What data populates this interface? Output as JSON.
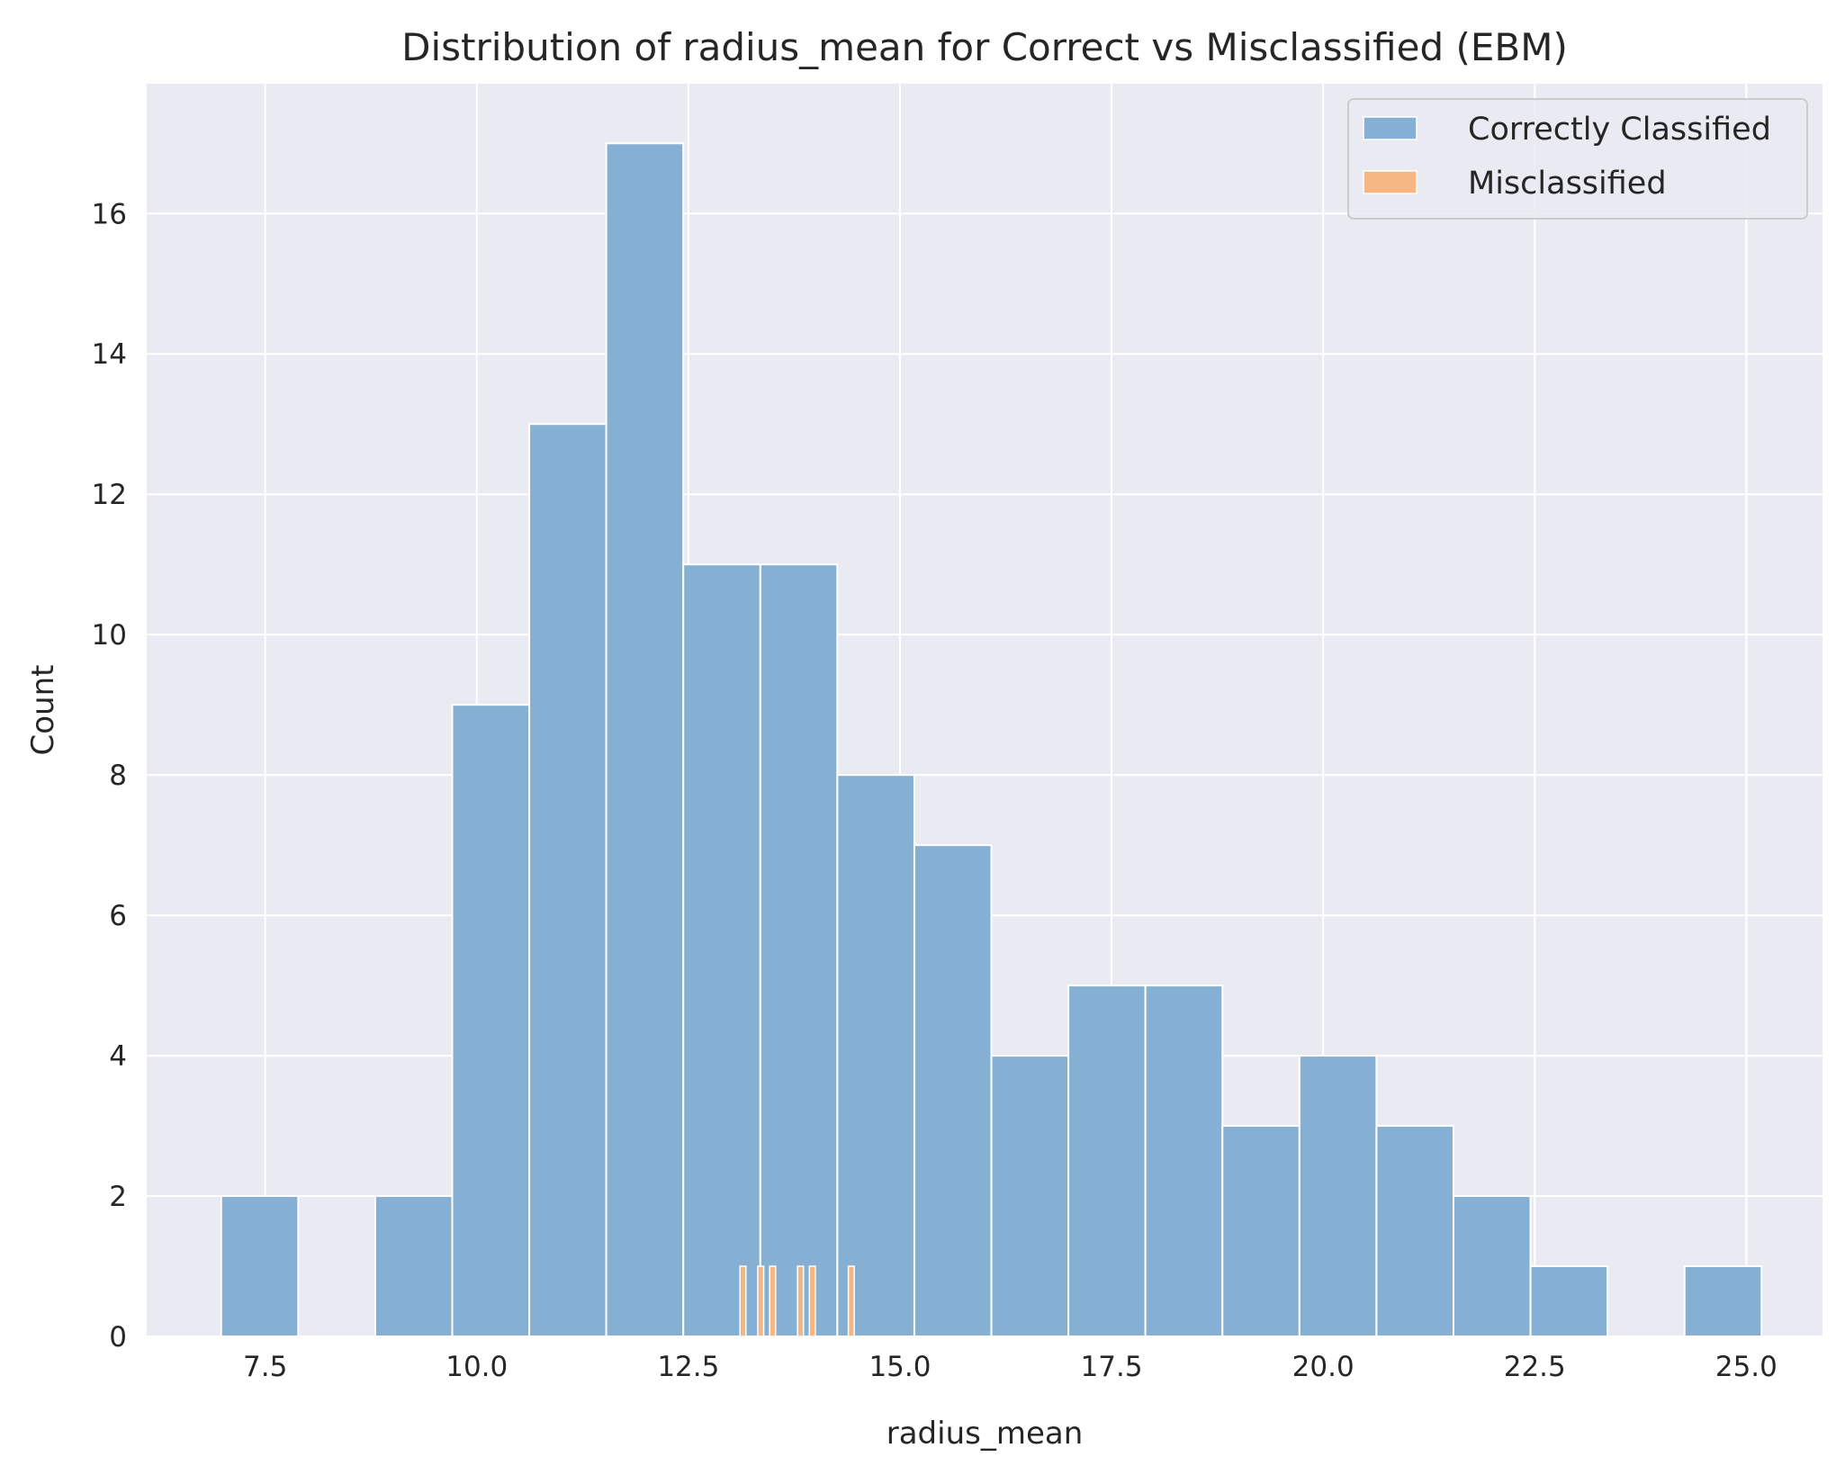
{
  "chart_data": {
    "type": "bar",
    "title": "Distribution of radius_mean for Correct vs Misclassified (EBM)",
    "xlabel": "radius_mean",
    "ylabel": "Count",
    "xlim": [
      6.1,
      25.9
    ],
    "ylim": [
      0,
      17.85
    ],
    "xticks": [
      "7.5",
      "10.0",
      "12.5",
      "15.0",
      "17.5",
      "20.0",
      "22.5",
      "25.0"
    ],
    "yticks": [
      "0",
      "2",
      "4",
      "6",
      "8",
      "10",
      "12",
      "14",
      "16"
    ],
    "grid": true,
    "legend_position": "top-right",
    "colors": {
      "background": "#eaeaf2",
      "grid": "#ffffff",
      "correct": "#86b0d3",
      "misclassified": "#f5b683",
      "bar_edge": "#ffffff"
    },
    "series": [
      {
        "name": "Correctly Classified",
        "bins": [
          {
            "x0": 6.98,
            "x1": 7.89,
            "count": 2
          },
          {
            "x0": 7.89,
            "x1": 8.8,
            "count": 0
          },
          {
            "x0": 8.8,
            "x1": 9.71,
            "count": 2
          },
          {
            "x0": 9.71,
            "x1": 10.62,
            "count": 9
          },
          {
            "x0": 10.62,
            "x1": 11.53,
            "count": 13
          },
          {
            "x0": 11.53,
            "x1": 12.44,
            "count": 17
          },
          {
            "x0": 12.44,
            "x1": 13.35,
            "count": 11
          },
          {
            "x0": 13.35,
            "x1": 14.26,
            "count": 11
          },
          {
            "x0": 14.26,
            "x1": 15.17,
            "count": 8
          },
          {
            "x0": 15.17,
            "x1": 16.08,
            "count": 7
          },
          {
            "x0": 16.08,
            "x1": 16.99,
            "count": 4
          },
          {
            "x0": 16.99,
            "x1": 17.9,
            "count": 5
          },
          {
            "x0": 17.9,
            "x1": 18.81,
            "count": 5
          },
          {
            "x0": 18.81,
            "x1": 19.72,
            "count": 3
          },
          {
            "x0": 19.72,
            "x1": 20.63,
            "count": 4
          },
          {
            "x0": 20.63,
            "x1": 21.54,
            "count": 3
          },
          {
            "x0": 21.54,
            "x1": 22.45,
            "count": 2
          },
          {
            "x0": 22.45,
            "x1": 23.36,
            "count": 1
          },
          {
            "x0": 23.36,
            "x1": 24.27,
            "count": 0
          },
          {
            "x0": 24.27,
            "x1": 25.18,
            "count": 1
          }
        ]
      },
      {
        "name": "Misclassified",
        "bins": [
          {
            "x0": 13.11,
            "x1": 13.18,
            "count": 1
          },
          {
            "x0": 13.32,
            "x1": 13.39,
            "count": 1
          },
          {
            "x0": 13.46,
            "x1": 13.53,
            "count": 1
          },
          {
            "x0": 13.79,
            "x1": 13.86,
            "count": 1
          },
          {
            "x0": 13.93,
            "x1": 14.0,
            "count": 1
          },
          {
            "x0": 14.39,
            "x1": 14.46,
            "count": 1
          }
        ]
      }
    ]
  }
}
